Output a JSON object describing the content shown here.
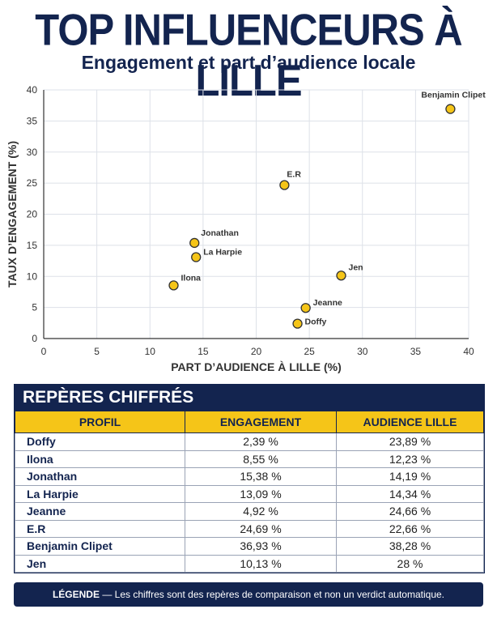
{
  "title": "TOP INFLUENCEURS À LILLE",
  "subtitle": "Engagement et part d’audience locale",
  "chart_data": {
    "type": "scatter",
    "xlabel": "PART D’AUDIENCE À LILLE (%)",
    "ylabel": "TAUX D’ENGAGEMENT (%)",
    "xlim": [
      0,
      40
    ],
    "ylim": [
      0,
      40
    ],
    "x_ticks": [
      0,
      5,
      10,
      15,
      20,
      25,
      30,
      35,
      40
    ],
    "y_ticks": [
      0,
      5,
      10,
      15,
      20,
      25,
      30,
      35,
      40
    ],
    "grid": true,
    "point_color": "#f5c518",
    "points": [
      {
        "label": "Doffy",
        "x": 23.89,
        "y": 2.39
      },
      {
        "label": "Ilona",
        "x": 12.23,
        "y": 8.55
      },
      {
        "label": "Jonathan",
        "x": 14.19,
        "y": 15.38
      },
      {
        "label": "La Harpie",
        "x": 14.34,
        "y": 13.09
      },
      {
        "label": "Jeanne",
        "x": 24.66,
        "y": 4.92
      },
      {
        "label": "E.R",
        "x": 22.66,
        "y": 24.69
      },
      {
        "label": "Benjamin Clipet",
        "x": 38.28,
        "y": 36.93
      },
      {
        "label": "Jen",
        "x": 28,
        "y": 10.13
      }
    ]
  },
  "table": {
    "title": "REPÈRES CHIFFRÉS",
    "headers": [
      "PROFIL",
      "ENGAGEMENT",
      "AUDIENCE LILLE"
    ],
    "rows": [
      {
        "name": "Doffy",
        "engagement": "2,39 %",
        "audience": "23,89 %"
      },
      {
        "name": "Ilona",
        "engagement": "8,55 %",
        "audience": "12,23 %"
      },
      {
        "name": "Jonathan",
        "engagement": "15,38 %",
        "audience": "14,19 %"
      },
      {
        "name": "La Harpie",
        "engagement": "13,09 %",
        "audience": "14,34 %"
      },
      {
        "name": "Jeanne",
        "engagement": "4,92 %",
        "audience": "24,66 %"
      },
      {
        "name": "E.R",
        "engagement": "24,69 %",
        "audience": "22,66 %"
      },
      {
        "name": "Benjamin Clipet",
        "engagement": "36,93 %",
        "audience": "38,28 %"
      },
      {
        "name": "Jen",
        "engagement": "10,13 %",
        "audience": "28 %"
      }
    ]
  },
  "legend": {
    "label": "LÉGENDE",
    "text": " — Les chiffres sont des repères de comparaison et non un verdict automatique."
  }
}
